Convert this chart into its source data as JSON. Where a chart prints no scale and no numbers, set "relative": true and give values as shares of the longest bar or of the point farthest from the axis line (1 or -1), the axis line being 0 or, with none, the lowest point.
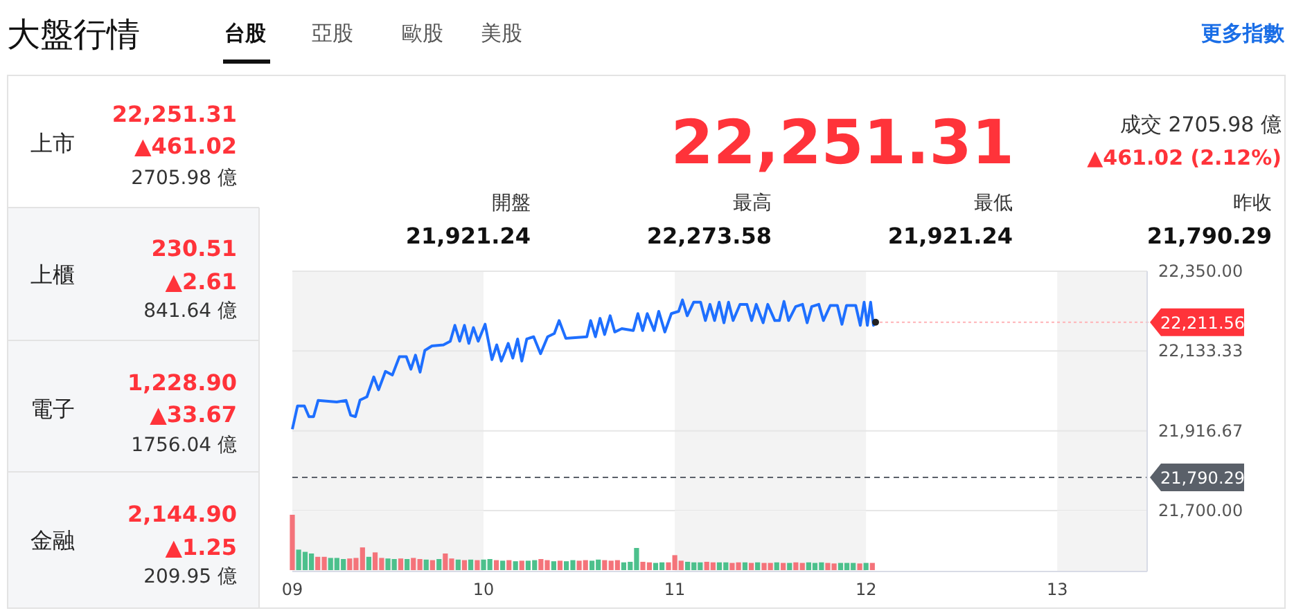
{
  "chart_data": [
    {
      "type": "other",
      "title": "大盤行情",
      "annotations": [
        "台股",
        "亞股",
        "歐股",
        "美股",
        "更多指數",
        "上市",
        "22,251.31",
        "▲461.02",
        "2705.98 億",
        "上櫃",
        "230.51",
        "▲2.61",
        "841.64 億",
        "電子",
        "1,228.90",
        "▲33.67",
        "1756.04 億",
        "金融",
        "2,144.90",
        "▲1.25",
        "209.95 億",
        "22,251.31",
        "成交 2705.98 億",
        "▲461.02 (2.12%)",
        "開盤",
        "21,921.24",
        "最高",
        "22,273.58",
        "最低",
        "21,921.24",
        "昨收",
        "21,790.29"
      ]
    },
    {
      "type": "line",
      "tick_labels": "y",
      "grid": "y",
      "xlim": [
        9,
        13.47
      ],
      "ylim": [
        21700,
        22350
      ],
      "yticks": [
        {
          "value": 22350,
          "label": "22,350.00"
        },
        {
          "value": 22133.33,
          "label": "22,133.33"
        },
        {
          "value": 21916.67,
          "label": "21,916.67"
        },
        {
          "value": 21700,
          "label": "21,700.00"
        }
      ],
      "bands": [
        {
          "axis": "x",
          "from": 9,
          "to": 10,
          "color": "#f3f3f3"
        },
        {
          "axis": "x",
          "from": 11,
          "to": 12,
          "color": "#f3f3f3"
        },
        {
          "axis": "x",
          "from": 13,
          "to": 13.47,
          "color": "#f3f3f3"
        }
      ],
      "ref_lines": [
        {
          "axis": "y",
          "value": 21790.29,
          "label": "21,790.29",
          "color": "#5a6069",
          "line_style": "dashed"
        }
      ],
      "annotations": [
        {
          "text": "22,211.56",
          "x": 12.05,
          "y": 22211.56
        }
      ],
      "series": [
        {
          "color": "#1e6fff",
          "x": [
            9,
            9.027,
            9.063,
            9.087,
            9.111,
            9.135,
            9.232,
            9.281,
            9.305,
            9.33,
            9.354,
            9.39,
            9.426,
            9.451,
            9.487,
            9.523,
            9.56,
            9.596,
            9.62,
            9.644,
            9.668,
            9.693,
            9.73,
            9.79,
            9.826,
            9.85,
            9.875,
            9.9,
            9.923,
            9.947,
            9.972,
            10.008,
            10.044,
            10.069,
            10.093,
            10.129,
            10.153,
            10.178,
            10.2,
            10.226,
            10.262,
            10.298,
            10.335,
            10.37,
            10.395,
            10.43,
            10.54,
            10.56,
            10.585,
            10.609,
            10.633,
            10.662,
            10.686,
            10.723,
            10.783,
            10.807,
            10.832,
            10.856,
            10.892,
            10.916,
            10.948,
            10.982,
            11.02,
            11.04,
            11.065,
            11.099,
            11.135,
            11.16,
            11.184,
            11.208,
            11.232,
            11.257,
            11.281,
            11.305,
            11.341,
            11.377,
            11.402,
            11.426,
            11.462,
            11.486,
            11.523,
            11.547,
            11.571,
            11.595,
            11.632,
            11.668,
            11.692,
            11.716,
            11.753,
            11.777,
            11.813,
            11.85,
            11.874,
            11.898,
            11.946,
            11.97,
            11.99,
            12.007,
            12.024,
            12.039,
            12.05
          ],
          "values": [
            21921,
            21984,
            21984,
            21955,
            21955,
            21999,
            21995,
            21999,
            21959,
            21955,
            22000,
            22009,
            22063,
            22028,
            22078,
            22068,
            22118,
            22118,
            22084,
            22122,
            22076,
            22135,
            22147,
            22150,
            22160,
            22203,
            22160,
            22203,
            22154,
            22197,
            22160,
            22206,
            22110,
            22150,
            22106,
            22154,
            22114,
            22166,
            22106,
            22166,
            22172,
            22126,
            22172,
            22181,
            22216,
            22168,
            22172,
            22216,
            22172,
            22222,
            22178,
            22229,
            22185,
            22194,
            22189,
            22235,
            22189,
            22235,
            22189,
            22241,
            22185,
            22235,
            22241,
            22272,
            22229,
            22266,
            22266,
            22216,
            22260,
            22216,
            22266,
            22210,
            22266,
            22216,
            22260,
            22260,
            22216,
            22260,
            22210,
            22260,
            22216,
            22216,
            22268,
            22216,
            22254,
            22260,
            22210,
            22254,
            22260,
            22216,
            22257,
            22257,
            22206,
            22257,
            22257,
            22203,
            22266,
            22203,
            22266,
            22203,
            22211.56
          ]
        }
      ]
    },
    {
      "type": "bar",
      "relative": true,
      "tick_labels": "x",
      "xlim": [
        9,
        13.47
      ],
      "xticks": [
        {
          "value": 9,
          "label": "09"
        },
        {
          "value": 10,
          "label": "10"
        },
        {
          "value": 11,
          "label": "11"
        },
        {
          "value": 12,
          "label": "12"
        },
        {
          "value": 13,
          "label": "13"
        }
      ],
      "bands": [
        {
          "axis": "x",
          "from": 9,
          "to": 10,
          "color": "#f3f3f3"
        },
        {
          "axis": "x",
          "from": 11,
          "to": 12,
          "color": "#f3f3f3"
        },
        {
          "axis": "x",
          "from": 13,
          "to": 13.47,
          "color": "#f3f3f3"
        }
      ],
      "x": [
        9,
        9.033,
        9.067,
        9.1,
        9.133,
        9.167,
        9.2,
        9.233,
        9.267,
        9.3,
        9.333,
        9.367,
        9.4,
        9.433,
        9.467,
        9.5,
        9.533,
        9.567,
        9.6,
        9.633,
        9.667,
        9.7,
        9.733,
        9.767,
        9.8,
        9.833,
        9.867,
        9.9,
        9.933,
        9.967,
        10,
        10.033,
        10.067,
        10.1,
        10.133,
        10.167,
        10.2,
        10.233,
        10.267,
        10.3,
        10.333,
        10.367,
        10.4,
        10.433,
        10.467,
        10.5,
        10.533,
        10.567,
        10.6,
        10.633,
        10.667,
        10.7,
        10.733,
        10.767,
        10.8,
        10.833,
        10.867,
        10.9,
        10.933,
        10.967,
        11,
        11.033,
        11.067,
        11.1,
        11.133,
        11.167,
        11.2,
        11.233,
        11.267,
        11.3,
        11.333,
        11.367,
        11.4,
        11.433,
        11.467,
        11.5,
        11.533,
        11.567,
        11.6,
        11.633,
        11.667,
        11.7,
        11.733,
        11.767,
        11.8,
        11.833,
        11.867,
        11.9,
        11.933,
        11.967,
        12,
        12.033
      ],
      "values": [
        1,
        0.37,
        0.33,
        0.3,
        0.24,
        0.24,
        0.22,
        0.22,
        0.2,
        0.21,
        0.22,
        0.41,
        0.24,
        0.32,
        0.22,
        0.21,
        0.2,
        0.21,
        0.2,
        0.22,
        0.2,
        0.19,
        0.18,
        0.2,
        0.3,
        0.21,
        0.19,
        0.18,
        0.19,
        0.18,
        0.19,
        0.2,
        0.18,
        0.17,
        0.18,
        0.16,
        0.17,
        0.17,
        0.18,
        0.2,
        0.18,
        0.16,
        0.17,
        0.16,
        0.18,
        0.17,
        0.18,
        0.17,
        0.19,
        0.18,
        0.17,
        0.18,
        0.14,
        0.15,
        0.4,
        0.15,
        0.14,
        0.13,
        0.14,
        0.14,
        0.27,
        0.17,
        0.15,
        0.14,
        0.14,
        0.15,
        0.14,
        0.14,
        0.14,
        0.13,
        0.14,
        0.14,
        0.13,
        0.14,
        0.13,
        0.13,
        0.14,
        0.13,
        0.13,
        0.14,
        0.13,
        0.14,
        0.13,
        0.14,
        0.13,
        0.12,
        0.13,
        0.13,
        0.13,
        0.12,
        0.13,
        0.13
      ],
      "colors": [
        "#f4737a",
        "#4cc08c",
        "#4cc08c",
        "#4cc08c",
        "#f4737a",
        "#f4737a",
        "#4cc08c",
        "#4cc08c",
        "#4cc08c",
        "#f4737a",
        "#f4737a",
        "#f4737a",
        "#4cc08c",
        "#f4737a",
        "#f4737a",
        "#4cc08c",
        "#4cc08c",
        "#f4737a",
        "#4cc08c",
        "#f4737a",
        "#f4737a",
        "#4cc08c",
        "#f4737a",
        "#4cc08c",
        "#f4737a",
        "#f4737a",
        "#4cc08c",
        "#f4737a",
        "#4cc08c",
        "#f4737a",
        "#4cc08c",
        "#4cc08c",
        "#f4737a",
        "#4cc08c",
        "#f4737a",
        "#4cc08c",
        "#f4737a",
        "#4cc08c",
        "#4cc08c",
        "#f4737a",
        "#f4737a",
        "#4cc08c",
        "#f4737a",
        "#4cc08c",
        "#4cc08c",
        "#f4737a",
        "#f4737a",
        "#4cc08c",
        "#4cc08c",
        "#f4737a",
        "#f4737a",
        "#f4737a",
        "#4cc08c",
        "#4cc08c",
        "#4cc08c",
        "#f4737a",
        "#f4737a",
        "#4cc08c",
        "#4cc08c",
        "#f4737a",
        "#f4737a",
        "#f4737a",
        "#4cc08c",
        "#4cc08c",
        "#4cc08c",
        "#f4737a",
        "#f4737a",
        "#4cc08c",
        "#4cc08c",
        "#f4737a",
        "#f4737a",
        "#4cc08c",
        "#f4737a",
        "#4cc08c",
        "#f4737a",
        "#f4737a",
        "#4cc08c",
        "#f4737a",
        "#4cc08c",
        "#f4737a",
        "#f4737a",
        "#4cc08c",
        "#4cc08c",
        "#4cc08c",
        "#f4737a",
        "#f4737a",
        "#4cc08c",
        "#4cc08c",
        "#4cc08c",
        "#f4737a",
        "#4cc08c",
        "#f4737a"
      ]
    }
  ]
}
